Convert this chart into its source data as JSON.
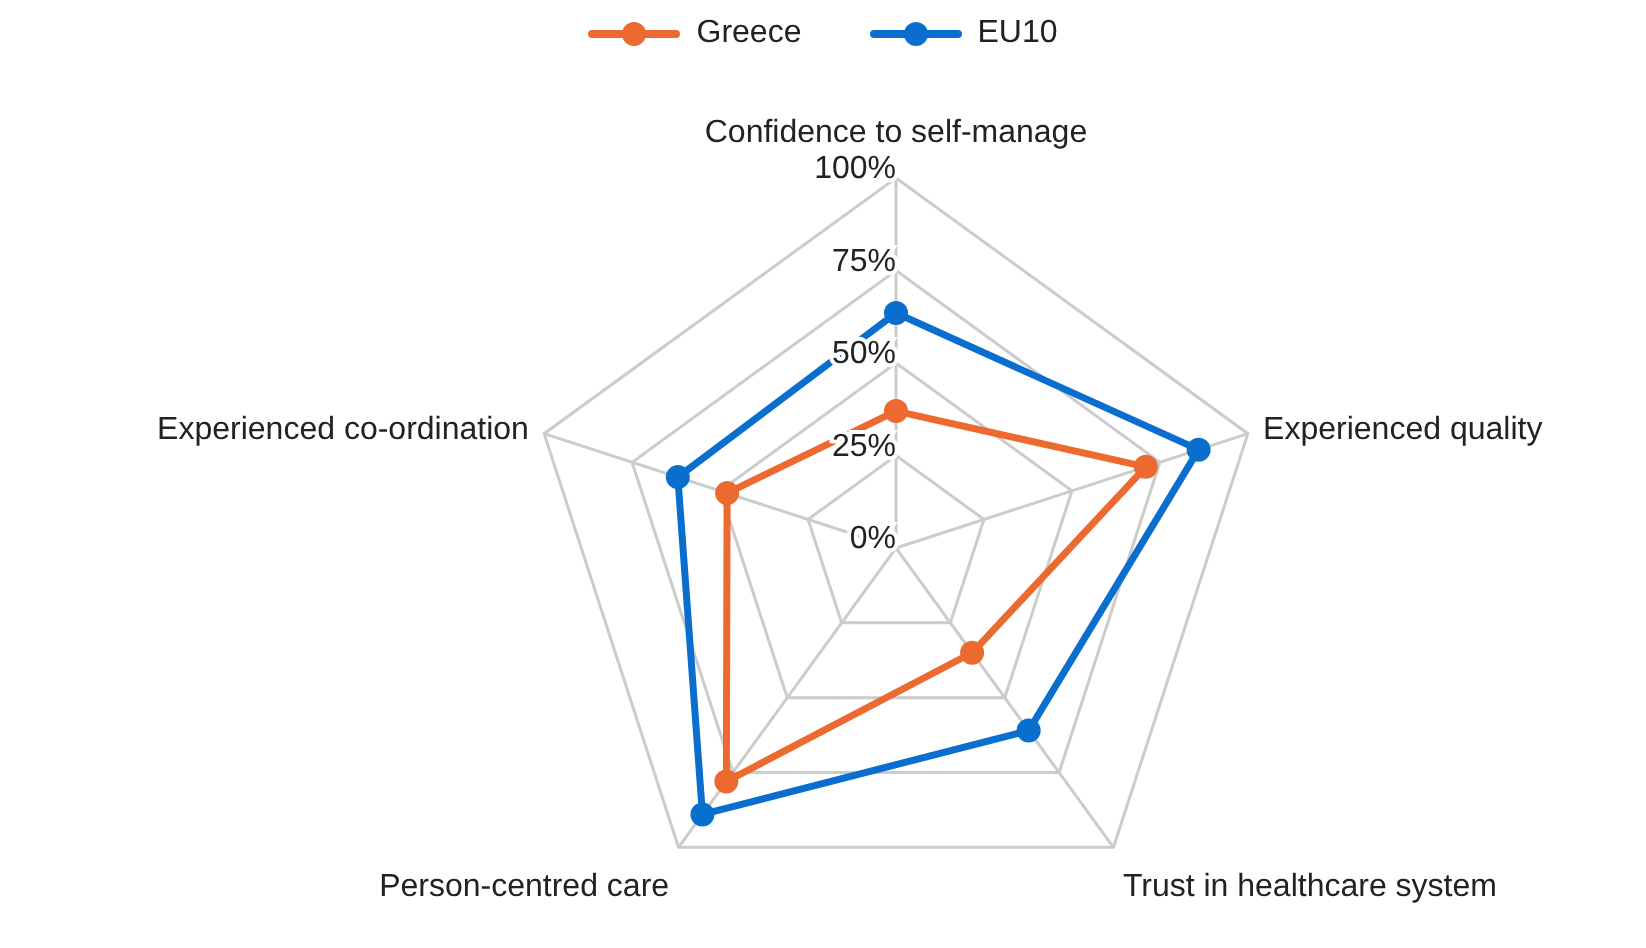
{
  "chart_data": {
    "type": "radar",
    "categories": [
      "Confidence to self-manage",
      "Experienced quality",
      "Trust in healthcare system",
      "Person-centred care",
      "Experienced co-ordination"
    ],
    "series": [
      {
        "name": "Greece",
        "color": "#ec6a2f",
        "values": [
          37,
          71,
          35,
          78,
          48
        ]
      },
      {
        "name": "EU10",
        "color": "#0a6ecf",
        "values": [
          63.5,
          86,
          61,
          89,
          62
        ]
      }
    ],
    "ylim": [
      0,
      100
    ],
    "yticks": [
      {
        "value": 0,
        "label": "0%"
      },
      {
        "value": 25,
        "label": "25%"
      },
      {
        "value": 50,
        "label": "50%"
      },
      {
        "value": 75,
        "label": "75%"
      },
      {
        "value": 100,
        "label": "100%"
      }
    ],
    "grid": true,
    "legend": "top",
    "marker": "circle",
    "line_style": "solid"
  }
}
